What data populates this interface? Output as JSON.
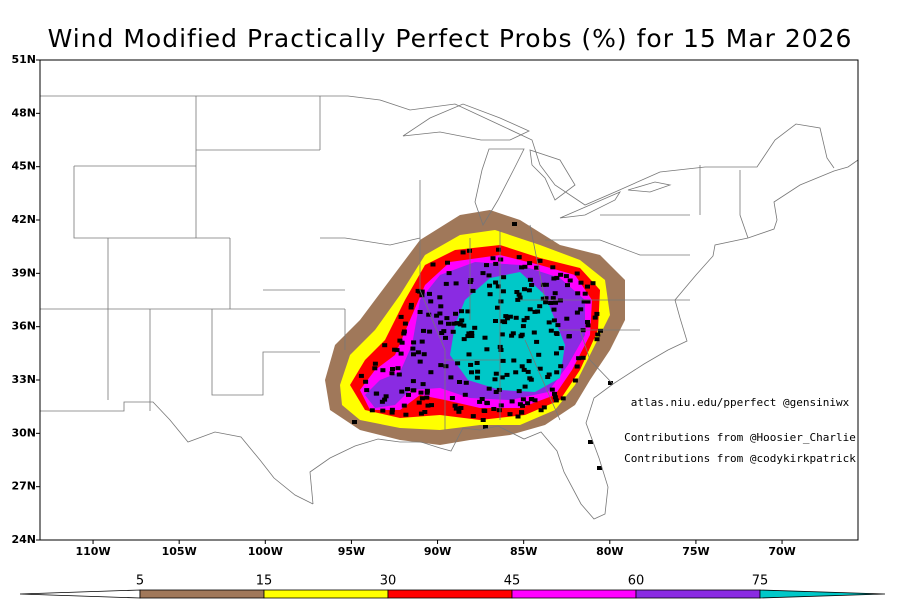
{
  "map": {
    "title": "Wind Modified Practically Perfect Probs (%) for 15 Mar 2026",
    "lon_range": [
      -113.08,
      -65.59
    ],
    "lat_range": [
      24,
      51
    ],
    "lon_ticks": [
      {
        "value": -110,
        "label": "110W"
      },
      {
        "value": -105,
        "label": "105W"
      },
      {
        "value": -100,
        "label": "100W"
      },
      {
        "value": -95,
        "label": "95W"
      },
      {
        "value": -90,
        "label": "90W"
      },
      {
        "value": -85,
        "label": "85W"
      },
      {
        "value": -80,
        "label": "80W"
      },
      {
        "value": -75,
        "label": "75W"
      },
      {
        "value": -70,
        "label": "70W"
      }
    ],
    "lat_ticks": [
      {
        "value": 24,
        "label": "24N"
      },
      {
        "value": 27,
        "label": "27N"
      },
      {
        "value": 30,
        "label": "30N"
      },
      {
        "value": 33,
        "label": "33N"
      },
      {
        "value": 36,
        "label": "36N"
      },
      {
        "value": 39,
        "label": "39N"
      },
      {
        "value": 42,
        "label": "42N"
      },
      {
        "value": 45,
        "label": "45N"
      },
      {
        "value": 48,
        "label": "48N"
      },
      {
        "value": 51,
        "label": "51N"
      }
    ],
    "annotations": [
      "atlas.niu.edu/pperfect @gensiniwx",
      "Contributions from @Hoosier_Charlie",
      "Contributions from @codykirkpatrick"
    ],
    "colorbar": {
      "levels": [
        5,
        15,
        30,
        45,
        60,
        75
      ],
      "colors": [
        "#a0785a",
        "#ffff00",
        "#ff0000",
        "#ff00ff",
        "#8a2be2",
        "#00c8c8"
      ]
    }
  }
}
